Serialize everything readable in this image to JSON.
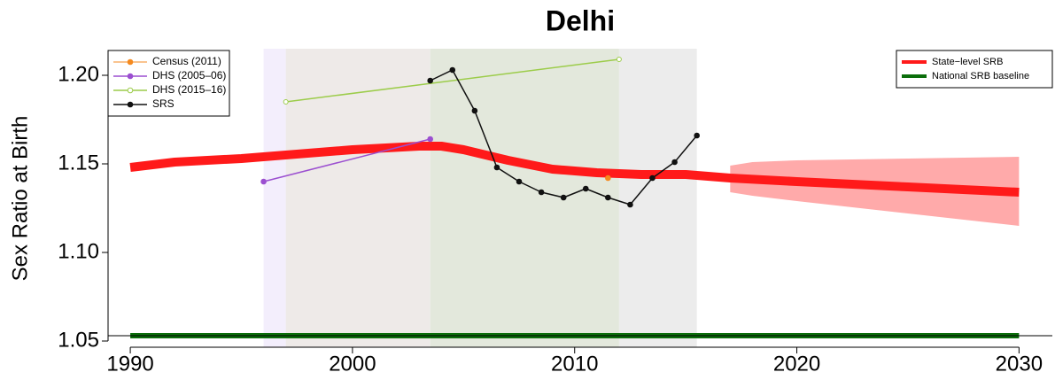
{
  "chart_data": {
    "type": "line",
    "title": "Delhi",
    "y_label": "Sex Ratio at Birth",
    "xlim": [
      1989,
      2031.5
    ],
    "ylim": [
      1.0465,
      1.215
    ],
    "xticks": [
      1990,
      2000,
      2010,
      2020,
      2030
    ],
    "yticks": [
      1.05,
      {
        "value": 1.1,
        "label": "1.10"
      },
      1.15,
      {
        "value": 1.2,
        "label": "1.20"
      }
    ],
    "periods": [
      {
        "x": [
          1996,
          1997
        ],
        "color": "#f3eefc"
      },
      {
        "x": [
          1997,
          2003.5
        ],
        "color": "#eeeae8"
      },
      {
        "x": [
          2003.5,
          2012
        ],
        "color": "#e3e8dc"
      },
      {
        "x": [
          2012,
          2015.5
        ],
        "color": "#ececec"
      }
    ],
    "band": {
      "color": "#ffaaaa",
      "x": [
        2017,
        2018,
        2020,
        2025,
        2030
      ],
      "upper": [
        1.149,
        1.151,
        1.152,
        1.153,
        1.154
      ],
      "lower": [
        1.134,
        1.132,
        1.129,
        1.122,
        1.115
      ]
    },
    "series": [
      {
        "name": "Census (2011)",
        "color": "#f58a1f",
        "marker": "filled",
        "line_width": 1,
        "legend": "top-left",
        "x": [
          2011.5
        ],
        "values": [
          1.142
        ]
      },
      {
        "name": "DHS (2005–06)",
        "color": "#9b4fd0",
        "marker": "filled",
        "line_width": 1.5,
        "legend": "top-left",
        "x": [
          1996,
          2003.5
        ],
        "values": [
          1.14,
          1.164
        ]
      },
      {
        "name": "DHS (2015–16)",
        "color": "#9ccc4a",
        "marker": "open",
        "line_width": 1.5,
        "legend": "top-left",
        "x": [
          1997,
          2012
        ],
        "values": [
          1.185,
          1.209
        ]
      },
      {
        "name": "SRS",
        "color": "#111111",
        "marker": "filled",
        "line_width": 1.5,
        "legend": "top-left",
        "x": [
          2003.5,
          2004.5,
          2005.5,
          2006.5,
          2007.5,
          2008.5,
          2009.5,
          2010.5,
          2011.5,
          2012.5,
          2013.5,
          2014.5,
          2015.5
        ],
        "values": [
          1.197,
          1.203,
          1.18,
          1.148,
          1.14,
          1.134,
          1.131,
          1.136,
          1.131,
          1.127,
          1.142,
          1.151,
          1.166
        ]
      },
      {
        "name": "State−level SRB",
        "color": "#ff1a1a",
        "marker": "none",
        "line_width": 10,
        "legend": "top-right",
        "x": [
          1990,
          1992,
          1995,
          2000,
          2003,
          2004,
          2005,
          2007,
          2009,
          2011,
          2013,
          2015,
          2017,
          2020,
          2025,
          2030
        ],
        "values": [
          1.148,
          1.151,
          1.153,
          1.158,
          1.16,
          1.16,
          1.158,
          1.152,
          1.147,
          1.145,
          1.144,
          1.144,
          1.142,
          1.14,
          1.137,
          1.134
        ]
      },
      {
        "name": "National SRB baseline",
        "color": "#0b6e0b",
        "marker": "none",
        "line_width": 6,
        "legend": "top-right",
        "x": [
          1990,
          2030
        ],
        "values": [
          1.053,
          1.053
        ]
      }
    ]
  }
}
